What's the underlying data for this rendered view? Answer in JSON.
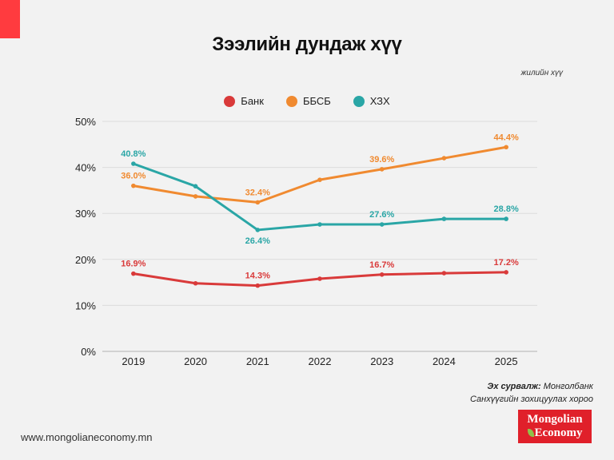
{
  "header": {
    "title": "Зээлийн дундаж хүү",
    "unit_note": "жилийн хүү"
  },
  "colors": {
    "accent": "#ff3b3f",
    "bank": "#d93a3a",
    "bbsb": "#f08a30",
    "hzh": "#2aa6a6"
  },
  "chart_data": {
    "type": "line",
    "title": "Зээлийн дундаж хүү",
    "subtitle": "жилийн хүү",
    "xlabel": "",
    "ylabel": "",
    "categories": [
      "2019",
      "2020",
      "2021",
      "2022",
      "2023",
      "2024",
      "2025"
    ],
    "ylim": [
      0,
      50
    ],
    "yticks": [
      0,
      10,
      20,
      30,
      40,
      50
    ],
    "ytick_labels": [
      "0%",
      "10%",
      "20%",
      "30%",
      "40%",
      "50%"
    ],
    "grid": true,
    "legend_position": "top-center",
    "series": [
      {
        "name": "Банк",
        "color": "#d93a3a",
        "values": [
          16.9,
          14.8,
          14.3,
          15.8,
          16.7,
          17.0,
          17.2
        ],
        "labels": [
          "16.9%",
          null,
          "14.3%",
          null,
          "16.7%",
          null,
          "17.2%"
        ]
      },
      {
        "name": "ББСБ",
        "color": "#f08a30",
        "values": [
          36.0,
          33.7,
          32.4,
          37.3,
          39.6,
          42.0,
          44.4
        ],
        "labels": [
          "36.0%",
          null,
          "32.4%",
          null,
          "39.6%",
          null,
          "44.4%"
        ]
      },
      {
        "name": "ХЗХ",
        "color": "#2aa6a6",
        "values": [
          40.8,
          35.9,
          26.4,
          27.6,
          27.6,
          28.8,
          28.8
        ],
        "labels": [
          "40.8%",
          null,
          "26.4%",
          null,
          "27.6%",
          null,
          "28.8%"
        ]
      }
    ]
  },
  "footer": {
    "source_label": "Эх сурвалж:",
    "source_line1": "Монголбанк",
    "source_line2": "Санхүүгийн зохицуулах хороо",
    "website": "www.mongolianeconomy.mn",
    "logo_line1": "Mongolian",
    "logo_line2": "Economy"
  }
}
